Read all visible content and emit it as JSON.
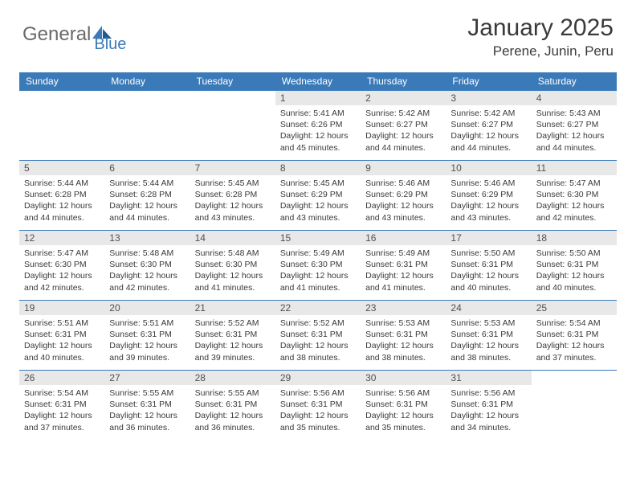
{
  "logo": {
    "part1": "General",
    "part2": "Blue"
  },
  "title": "January 2025",
  "location": "Perene, Junin, Peru",
  "colors": {
    "header_bg": "#3a7ab8",
    "header_text": "#ffffff",
    "daynum_bg": "#e8e8e8",
    "daynum_text": "#505050",
    "body_text": "#3a3a3a",
    "row_border": "#3a7ab8",
    "logo_gray": "#6a6a6a",
    "logo_blue": "#3a7ab8"
  },
  "weekdays": [
    "Sunday",
    "Monday",
    "Tuesday",
    "Wednesday",
    "Thursday",
    "Friday",
    "Saturday"
  ],
  "weeks": [
    [
      null,
      null,
      null,
      {
        "n": "1",
        "sr": "5:41 AM",
        "ss": "6:26 PM",
        "dl": "12 hours and 45 minutes."
      },
      {
        "n": "2",
        "sr": "5:42 AM",
        "ss": "6:27 PM",
        "dl": "12 hours and 44 minutes."
      },
      {
        "n": "3",
        "sr": "5:42 AM",
        "ss": "6:27 PM",
        "dl": "12 hours and 44 minutes."
      },
      {
        "n": "4",
        "sr": "5:43 AM",
        "ss": "6:27 PM",
        "dl": "12 hours and 44 minutes."
      }
    ],
    [
      {
        "n": "5",
        "sr": "5:44 AM",
        "ss": "6:28 PM",
        "dl": "12 hours and 44 minutes."
      },
      {
        "n": "6",
        "sr": "5:44 AM",
        "ss": "6:28 PM",
        "dl": "12 hours and 44 minutes."
      },
      {
        "n": "7",
        "sr": "5:45 AM",
        "ss": "6:28 PM",
        "dl": "12 hours and 43 minutes."
      },
      {
        "n": "8",
        "sr": "5:45 AM",
        "ss": "6:29 PM",
        "dl": "12 hours and 43 minutes."
      },
      {
        "n": "9",
        "sr": "5:46 AM",
        "ss": "6:29 PM",
        "dl": "12 hours and 43 minutes."
      },
      {
        "n": "10",
        "sr": "5:46 AM",
        "ss": "6:29 PM",
        "dl": "12 hours and 43 minutes."
      },
      {
        "n": "11",
        "sr": "5:47 AM",
        "ss": "6:30 PM",
        "dl": "12 hours and 42 minutes."
      }
    ],
    [
      {
        "n": "12",
        "sr": "5:47 AM",
        "ss": "6:30 PM",
        "dl": "12 hours and 42 minutes."
      },
      {
        "n": "13",
        "sr": "5:48 AM",
        "ss": "6:30 PM",
        "dl": "12 hours and 42 minutes."
      },
      {
        "n": "14",
        "sr": "5:48 AM",
        "ss": "6:30 PM",
        "dl": "12 hours and 41 minutes."
      },
      {
        "n": "15",
        "sr": "5:49 AM",
        "ss": "6:30 PM",
        "dl": "12 hours and 41 minutes."
      },
      {
        "n": "16",
        "sr": "5:49 AM",
        "ss": "6:31 PM",
        "dl": "12 hours and 41 minutes."
      },
      {
        "n": "17",
        "sr": "5:50 AM",
        "ss": "6:31 PM",
        "dl": "12 hours and 40 minutes."
      },
      {
        "n": "18",
        "sr": "5:50 AM",
        "ss": "6:31 PM",
        "dl": "12 hours and 40 minutes."
      }
    ],
    [
      {
        "n": "19",
        "sr": "5:51 AM",
        "ss": "6:31 PM",
        "dl": "12 hours and 40 minutes."
      },
      {
        "n": "20",
        "sr": "5:51 AM",
        "ss": "6:31 PM",
        "dl": "12 hours and 39 minutes."
      },
      {
        "n": "21",
        "sr": "5:52 AM",
        "ss": "6:31 PM",
        "dl": "12 hours and 39 minutes."
      },
      {
        "n": "22",
        "sr": "5:52 AM",
        "ss": "6:31 PM",
        "dl": "12 hours and 38 minutes."
      },
      {
        "n": "23",
        "sr": "5:53 AM",
        "ss": "6:31 PM",
        "dl": "12 hours and 38 minutes."
      },
      {
        "n": "24",
        "sr": "5:53 AM",
        "ss": "6:31 PM",
        "dl": "12 hours and 38 minutes."
      },
      {
        "n": "25",
        "sr": "5:54 AM",
        "ss": "6:31 PM",
        "dl": "12 hours and 37 minutes."
      }
    ],
    [
      {
        "n": "26",
        "sr": "5:54 AM",
        "ss": "6:31 PM",
        "dl": "12 hours and 37 minutes."
      },
      {
        "n": "27",
        "sr": "5:55 AM",
        "ss": "6:31 PM",
        "dl": "12 hours and 36 minutes."
      },
      {
        "n": "28",
        "sr": "5:55 AM",
        "ss": "6:31 PM",
        "dl": "12 hours and 36 minutes."
      },
      {
        "n": "29",
        "sr": "5:56 AM",
        "ss": "6:31 PM",
        "dl": "12 hours and 35 minutes."
      },
      {
        "n": "30",
        "sr": "5:56 AM",
        "ss": "6:31 PM",
        "dl": "12 hours and 35 minutes."
      },
      {
        "n": "31",
        "sr": "5:56 AM",
        "ss": "6:31 PM",
        "dl": "12 hours and 34 minutes."
      },
      null
    ]
  ],
  "labels": {
    "sunrise": "Sunrise:",
    "sunset": "Sunset:",
    "daylight": "Daylight:"
  }
}
